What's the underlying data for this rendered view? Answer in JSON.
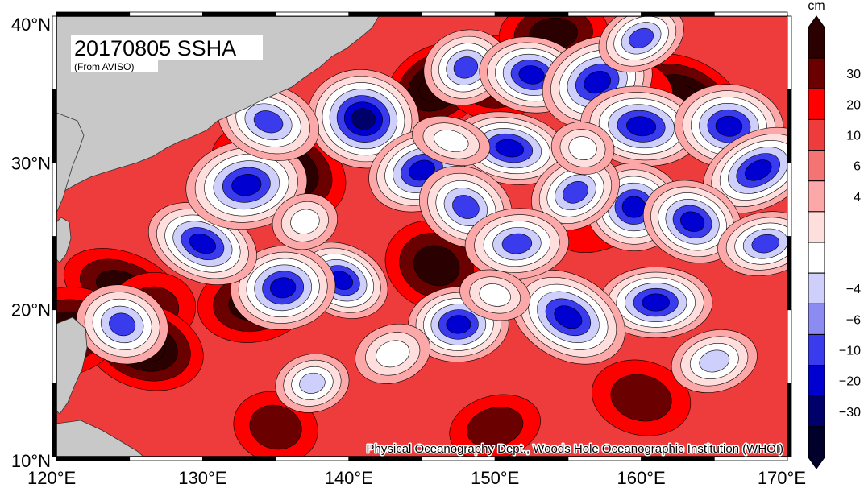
{
  "map": {
    "title": "20170805 SSHA",
    "subtitle": "(From AVISO)",
    "credit": "Physical Oceanography Dept., Woods Hole Oceanographic Institution (WHOI)",
    "lon_range": [
      120,
      170
    ],
    "lat_range": [
      10,
      40
    ],
    "lon_ticks": [
      {
        "value": 120,
        "label": "120°E"
      },
      {
        "value": 130,
        "label": "130°E"
      },
      {
        "value": 140,
        "label": "140°E"
      },
      {
        "value": 150,
        "label": "150°E"
      },
      {
        "value": 160,
        "label": "160°E"
      },
      {
        "value": 170,
        "label": "170°E"
      }
    ],
    "lat_ticks": [
      {
        "value": 10,
        "label": "10°N"
      },
      {
        "value": 20,
        "label": "20°N"
      },
      {
        "value": 30,
        "label": "30°N"
      },
      {
        "value": 40,
        "label": "40°N"
      }
    ],
    "land_color": "#c8c8c8",
    "grid": false
  },
  "colorbar": {
    "unit": "cm",
    "bins": [
      {
        "color": "#2a0000"
      },
      {
        "color": "#6b0000"
      },
      {
        "color": "#ff0000"
      },
      {
        "color": "#ee3b3b"
      },
      {
        "color": "#f47474"
      },
      {
        "color": "#fca8a8"
      },
      {
        "color": "#ffdede"
      },
      {
        "color": "#ffffff"
      },
      {
        "color": "#cfcffc"
      },
      {
        "color": "#8b8bf2"
      },
      {
        "color": "#3b3bee"
      },
      {
        "color": "#0000d0"
      },
      {
        "color": "#00006b"
      },
      {
        "color": "#00002a"
      }
    ],
    "tick_labels": [
      "30",
      "20",
      "10",
      "6",
      "4",
      "−4",
      "−6",
      "−10",
      "−20",
      "−30"
    ]
  },
  "anomaly_features": [
    {
      "lon": 146.0,
      "lat": 35.2,
      "level": 4
    },
    {
      "lon": 150.0,
      "lat": 35.8,
      "level": 3
    },
    {
      "lon": 163.0,
      "lat": 34.2,
      "level": 4
    },
    {
      "lon": 158.5,
      "lat": 34.5,
      "level": 2
    },
    {
      "lon": 155.5,
      "lat": 37.5,
      "level": 2
    },
    {
      "lon": 154.0,
      "lat": 38.8,
      "level": 3
    },
    {
      "lon": 135.5,
      "lat": 29.5,
      "level": 4
    },
    {
      "lon": 133.5,
      "lat": 30.5,
      "level": 2
    },
    {
      "lon": 146.0,
      "lat": 23.0,
      "level": 3
    },
    {
      "lon": 133.5,
      "lat": 20.5,
      "level": 3
    },
    {
      "lon": 124.5,
      "lat": 21.5,
      "level": 3
    },
    {
      "lon": 126.5,
      "lat": 20.0,
      "level": 2
    },
    {
      "lon": 126.0,
      "lat": 17.5,
      "level": 4
    },
    {
      "lon": 120.5,
      "lat": 18.5,
      "level": 3
    },
    {
      "lon": 135.0,
      "lat": 12.0,
      "level": 2
    },
    {
      "lon": 150.0,
      "lat": 12.0,
      "level": 2
    },
    {
      "lon": 160.0,
      "lat": 14.0,
      "level": 2
    },
    {
      "lon": 157.0,
      "lat": 26.0,
      "level": 1
    },
    {
      "lon": 141.0,
      "lat": 33.0,
      "level": -4
    },
    {
      "lon": 145.0,
      "lat": 29.5,
      "level": -3
    },
    {
      "lon": 151.0,
      "lat": 31.0,
      "level": -3
    },
    {
      "lon": 148.0,
      "lat": 36.5,
      "level": -2
    },
    {
      "lon": 152.5,
      "lat": 36.0,
      "level": -3
    },
    {
      "lon": 157.0,
      "lat": 35.5,
      "level": -3
    },
    {
      "lon": 160.0,
      "lat": 32.5,
      "level": -3
    },
    {
      "lon": 160.0,
      "lat": 38.5,
      "level": -2
    },
    {
      "lon": 166.0,
      "lat": 32.5,
      "level": -3
    },
    {
      "lon": 168.0,
      "lat": 29.5,
      "level": -3
    },
    {
      "lon": 159.5,
      "lat": 27.0,
      "level": -3
    },
    {
      "lon": 155.5,
      "lat": 28.0,
      "level": -2
    },
    {
      "lon": 161.0,
      "lat": 20.5,
      "level": -3
    },
    {
      "lon": 155.0,
      "lat": 19.5,
      "level": -3
    },
    {
      "lon": 147.5,
      "lat": 19.0,
      "level": -3
    },
    {
      "lon": 148.0,
      "lat": 27.0,
      "level": -2
    },
    {
      "lon": 151.5,
      "lat": 24.5,
      "level": -2
    },
    {
      "lon": 139.5,
      "lat": 22.0,
      "level": -3
    },
    {
      "lon": 135.5,
      "lat": 21.5,
      "level": -3
    },
    {
      "lon": 130.0,
      "lat": 24.5,
      "level": -3
    },
    {
      "lon": 133.0,
      "lat": 28.5,
      "level": -3
    },
    {
      "lon": 163.5,
      "lat": 26.0,
      "level": -3
    },
    {
      "lon": 168.5,
      "lat": 24.5,
      "level": -2
    },
    {
      "lon": 134.5,
      "lat": 32.8,
      "level": -2
    },
    {
      "lon": 137.5,
      "lat": 15.0,
      "level": -1
    },
    {
      "lon": 124.5,
      "lat": 19.0,
      "level": -2
    },
    {
      "lon": 165.0,
      "lat": 16.5,
      "level": -1
    },
    {
      "lon": 147.0,
      "lat": 31.5,
      "level": 0
    },
    {
      "lon": 137.0,
      "lat": 26.0,
      "level": 0
    },
    {
      "lon": 150.0,
      "lat": 21.0,
      "level": 0
    },
    {
      "lon": 143.0,
      "lat": 17.0,
      "level": 0
    },
    {
      "lon": 156.0,
      "lat": 31.0,
      "level": 0
    }
  ]
}
